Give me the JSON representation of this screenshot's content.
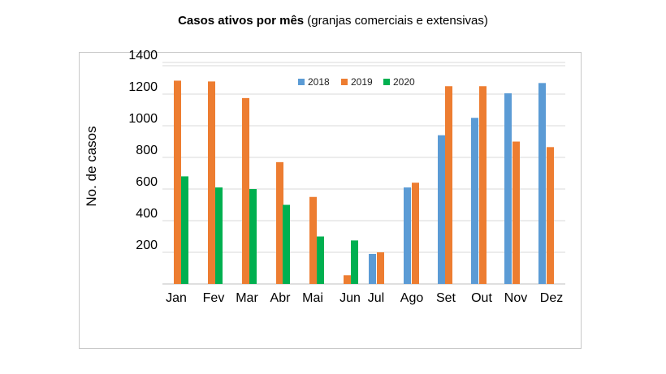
{
  "chart_data": {
    "type": "bar",
    "title_bold": "Casos ativos por mês",
    "title_rest": " (granjas comerciais e extensivas)",
    "ylabel": "No. de casos",
    "xlabel": "",
    "categories": [
      "Jan",
      "Fev",
      "Mar",
      "Abr",
      "Mai",
      "Jun",
      "Jul",
      "Ago",
      "Set",
      "Out",
      "Nov",
      "Dez"
    ],
    "series": [
      {
        "name": "2018",
        "color": "#5b9bd5",
        "values": [
          null,
          null,
          null,
          null,
          null,
          null,
          190,
          610,
          940,
          1050,
          1205,
          1270
        ]
      },
      {
        "name": "2019",
        "color": "#ed7d31",
        "values": [
          1285,
          1280,
          1175,
          770,
          550,
          55,
          200,
          640,
          1250,
          1250,
          900,
          865
        ]
      },
      {
        "name": "2020",
        "color": "#00b050",
        "values": [
          680,
          610,
          600,
          500,
          300,
          275,
          null,
          null,
          null,
          null,
          null,
          null
        ]
      }
    ],
    "y_ticks": [
      200,
      400,
      600,
      800,
      1000,
      1200,
      1400
    ],
    "ylim": [
      0,
      1400
    ],
    "grid": true,
    "legend_position": "top"
  }
}
